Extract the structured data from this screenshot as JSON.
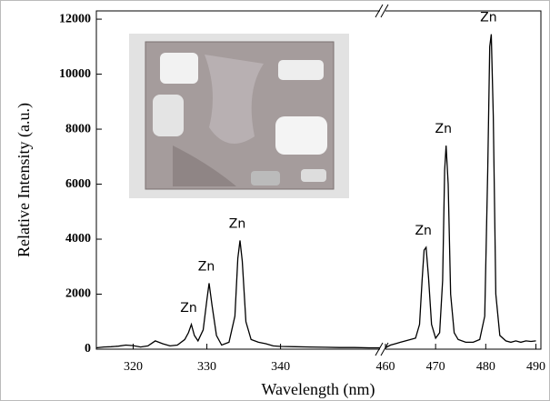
{
  "chart_data": {
    "type": "line",
    "ylabel": "Relative Intensity (a.u.)",
    "xlabel": "Wavelength (nm)",
    "ylim": [
      0,
      12300
    ],
    "yticks": [
      0,
      2000,
      4000,
      6000,
      8000,
      10000,
      12000
    ],
    "color": "#000000",
    "panels": [
      {
        "xlim": [
          315,
          353.5
        ],
        "xticks": [
          320,
          330,
          340
        ],
        "x": [
          315,
          316,
          317,
          318,
          319,
          320,
          321,
          322,
          323,
          324,
          325,
          326,
          327,
          327.5,
          327.9,
          328.3,
          328.8,
          329.5,
          330,
          330.3,
          330.7,
          331.3,
          332,
          333,
          333.8,
          334.2,
          334.5,
          334.8,
          335.3,
          336,
          337,
          338,
          339,
          340,
          342,
          344,
          346,
          348,
          350,
          352,
          353.5
        ],
        "values": [
          50,
          80,
          90,
          110,
          150,
          130,
          80,
          120,
          300,
          200,
          120,
          150,
          350,
          600,
          900,
          500,
          300,
          700,
          1800,
          2400,
          1600,
          500,
          150,
          250,
          1200,
          3300,
          3950,
          3200,
          1000,
          350,
          250,
          200,
          120,
          100,
          90,
          80,
          70,
          60,
          60,
          50,
          50
        ],
        "annotations": [
          {
            "text": "Zn",
            "x": 327.9,
            "y": 900
          },
          {
            "text": "Zn",
            "x": 330.3,
            "y": 2400
          },
          {
            "text": "Zn",
            "x": 334.5,
            "y": 3950
          }
        ]
      },
      {
        "xlim": [
          460,
          491
        ],
        "xticks": [
          460,
          470,
          480,
          490
        ],
        "x": [
          460,
          461,
          462,
          463,
          464,
          465,
          466,
          466.8,
          467.3,
          467.7,
          468.1,
          468.6,
          469.2,
          470,
          470.8,
          471.4,
          471.8,
          472.1,
          472.5,
          473,
          473.7,
          474.5,
          476,
          477.5,
          478.8,
          479.8,
          480.4,
          480.8,
          481.1,
          481.5,
          482,
          482.8,
          484,
          485,
          486,
          487,
          488,
          489,
          490
        ],
        "values": [
          50,
          150,
          200,
          250,
          300,
          350,
          400,
          900,
          2500,
          3600,
          3700,
          2600,
          900,
          400,
          600,
          2500,
          6500,
          7400,
          6000,
          2000,
          600,
          350,
          250,
          250,
          350,
          1200,
          6500,
          11000,
          11450,
          8500,
          2000,
          500,
          300,
          250,
          300,
          250,
          300,
          280,
          300
        ],
        "annotations": [
          {
            "text": "Zn",
            "x": 468.1,
            "y": 3700
          },
          {
            "text": "Zn",
            "x": 472.1,
            "y": 7400
          },
          {
            "text": "Zn",
            "x": 481.1,
            "y": 11450
          }
        ]
      }
    ]
  }
}
